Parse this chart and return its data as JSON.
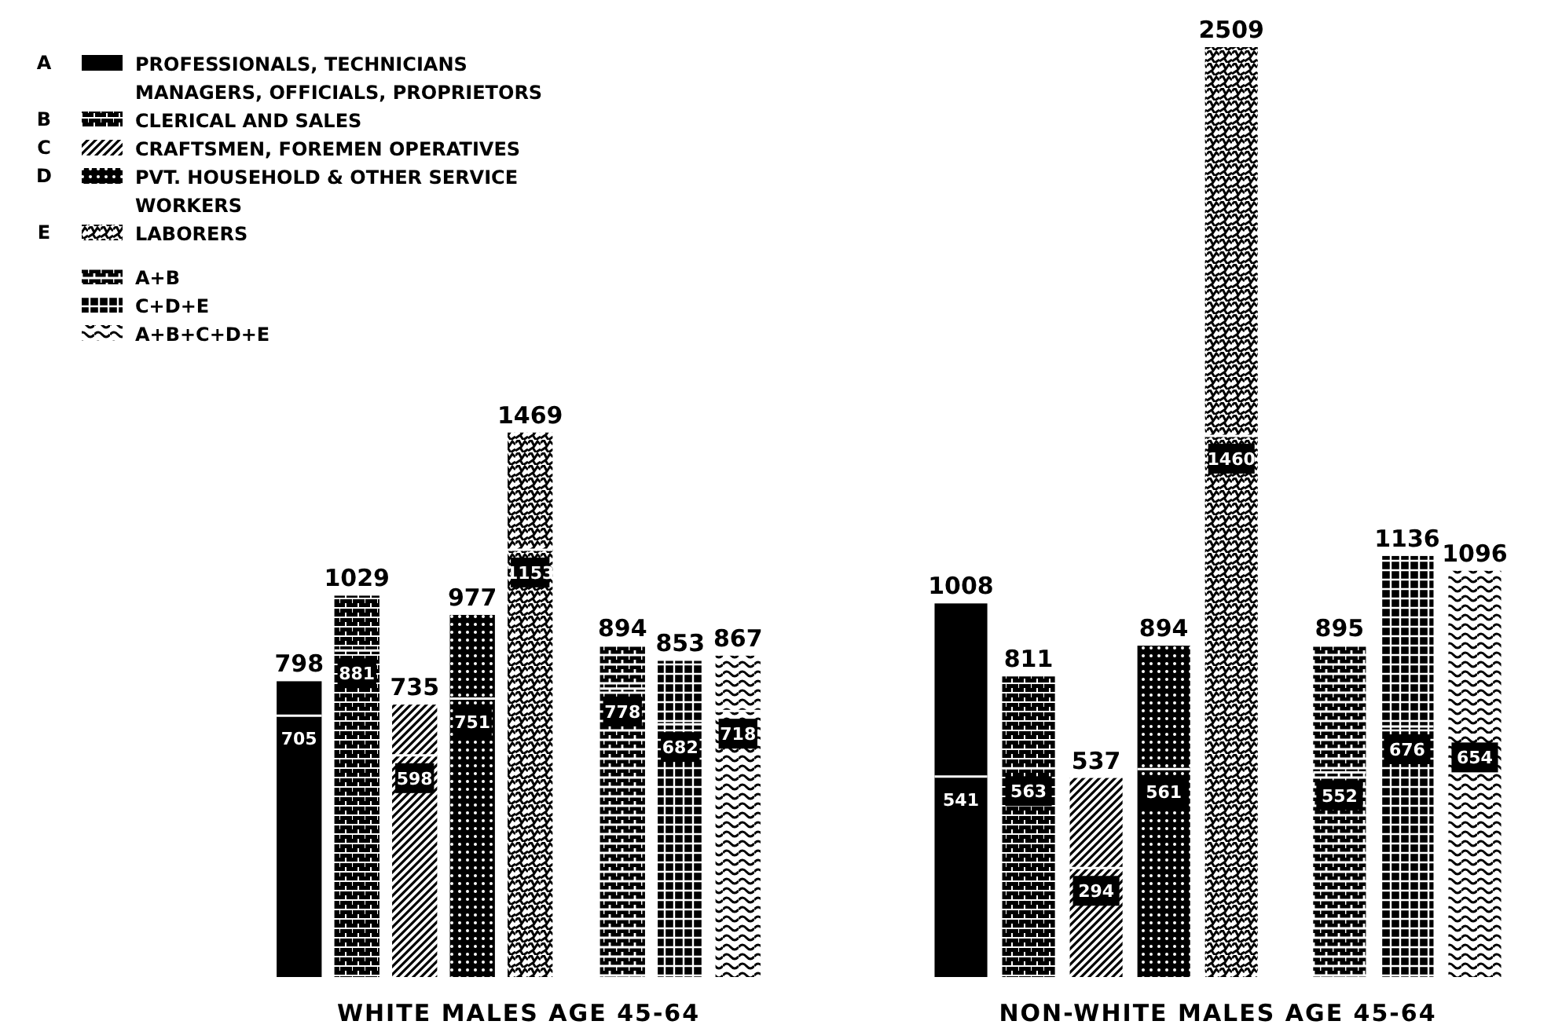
{
  "chart_data": [
    {
      "type": "bar",
      "stacked": true,
      "xlabel": "WHITE MALES AGE 45-64",
      "categories": [
        null,
        null,
        null,
        null,
        null,
        null,
        null,
        null
      ],
      "annotations": [
        "A PROFESSIONALS, TECHNICIANS MANAGERS, OFFICIALS, PROPRIETORS",
        "B CLERICAL AND SALES",
        "C CRAFTSMEN, FOREMEN OPERATIVES",
        "D PVT. HOUSEHOLD & OTHER SERVICE WORKERS",
        "E LABORERS",
        "A+B",
        "C+D+E",
        "A+B+C+D+E"
      ],
      "series": [
        {
          "colors": [
            "#000000",
            "#000000",
            "#000000",
            "#000000",
            "#000000",
            "#000000",
            "#000000",
            "#000000"
          ],
          "values": [
            705,
            881,
            598,
            751,
            1153,
            778,
            682,
            718
          ],
          "value_labels": [
            "705",
            "881",
            "598",
            "751",
            "1153",
            "778",
            "682",
            "718"
          ]
        },
        {
          "colors": [
            "#000000",
            "#000000",
            "#000000",
            "#000000",
            "#000000",
            "#000000",
            "#000000",
            "#000000"
          ],
          "values": [
            93,
            148,
            137,
            226,
            316,
            116,
            171,
            149
          ]
        }
      ],
      "totals": [
        "798",
        "1029",
        "735",
        "977",
        "1469",
        "894",
        "853",
        "867"
      ]
    },
    {
      "type": "bar",
      "stacked": true,
      "xlabel": "NON-WHITE MALES AGE 45-64",
      "categories": [
        null,
        null,
        null,
        null,
        null,
        null,
        null,
        null
      ],
      "series": [
        {
          "colors": [
            "#000000",
            "#000000",
            "#000000",
            "#000000",
            "#000000",
            "#000000",
            "#000000",
            "#000000"
          ],
          "values": [
            541,
            563,
            294,
            561,
            1460,
            552,
            676,
            654
          ],
          "value_labels": [
            "541",
            "563",
            "294",
            "561",
            "1460",
            "552",
            "676",
            "654"
          ]
        },
        {
          "colors": [
            "#000000",
            "#000000",
            "#000000",
            "#000000",
            "#000000",
            "#000000",
            "#000000",
            "#000000"
          ],
          "values": [
            467,
            248,
            243,
            333,
            1049,
            343,
            460,
            442
          ]
        }
      ],
      "totals": [
        "1008",
        "811",
        "537",
        "894",
        "2509",
        "895",
        "1136",
        "1096"
      ]
    }
  ]
}
